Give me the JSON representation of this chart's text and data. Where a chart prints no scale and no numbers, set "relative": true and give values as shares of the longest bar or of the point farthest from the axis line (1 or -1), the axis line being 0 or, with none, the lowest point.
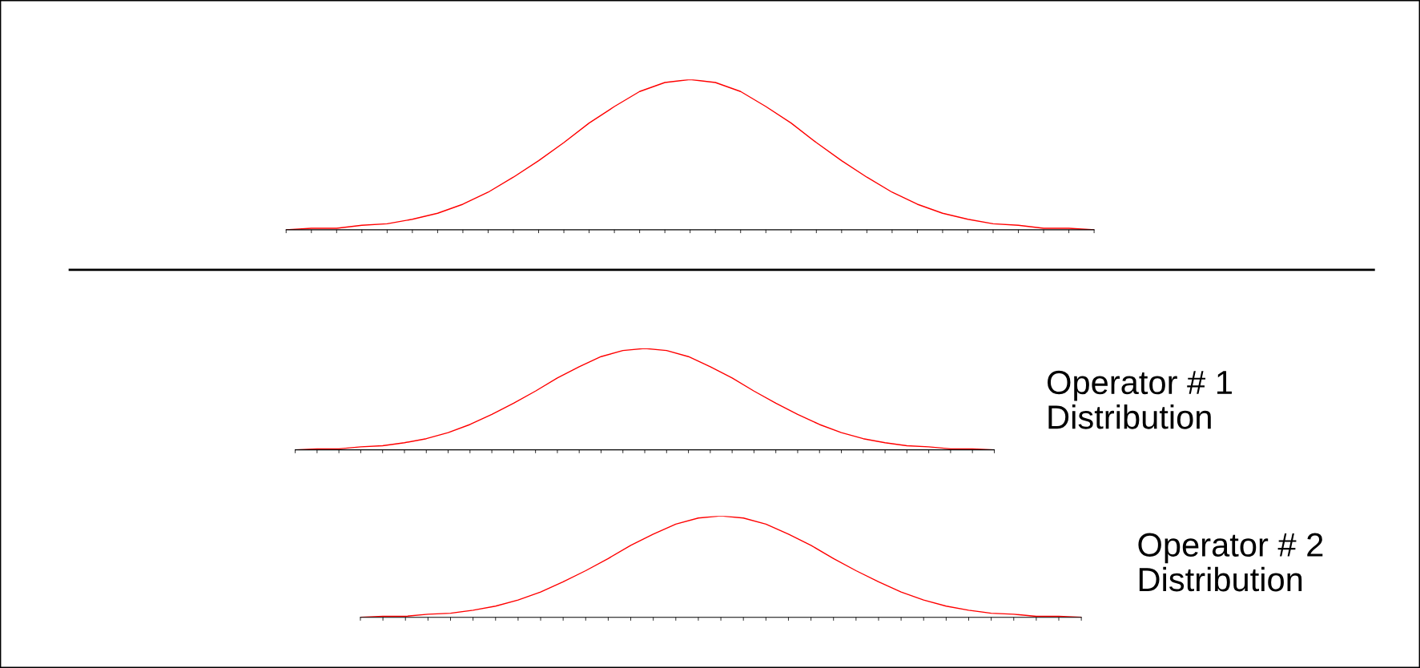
{
  "chart_data": [
    {
      "type": "line",
      "relative": true,
      "tick_labels": false,
      "grid": false,
      "legend": false,
      "marker": "none",
      "line_style": "solid",
      "categories": [
        null,
        null,
        null,
        null,
        null,
        null,
        null,
        null,
        null,
        null,
        null,
        null,
        null,
        null,
        null,
        null,
        null,
        null,
        null,
        null,
        null,
        null,
        null,
        null,
        null,
        null,
        null,
        null,
        null,
        null,
        null,
        null,
        null
      ],
      "series": [
        {
          "color": "#ff0000",
          "values": [
            0,
            0.01,
            0.01,
            0.03,
            0.04,
            0.07,
            0.11,
            0.17,
            0.25,
            0.35,
            0.46,
            0.58,
            0.71,
            0.82,
            0.92,
            0.98,
            1,
            0.98,
            0.92,
            0.82,
            0.71,
            0.58,
            0.46,
            0.35,
            0.25,
            0.17,
            0.11,
            0.07,
            0.04,
            0.03,
            0.01,
            0.01,
            0
          ]
        }
      ]
    },
    {
      "type": "line",
      "relative": true,
      "tick_labels": false,
      "grid": false,
      "legend": false,
      "marker": "none",
      "line_style": "solid",
      "categories": [
        null,
        null,
        null,
        null,
        null,
        null,
        null,
        null,
        null,
        null,
        null,
        null,
        null,
        null,
        null,
        null,
        null,
        null,
        null,
        null,
        null,
        null,
        null,
        null,
        null,
        null,
        null,
        null,
        null,
        null,
        null,
        null,
        null
      ],
      "series": [
        {
          "color": "#ff0000",
          "values": [
            0,
            0.01,
            0.01,
            0.03,
            0.04,
            0.07,
            0.11,
            0.17,
            0.25,
            0.35,
            0.46,
            0.58,
            0.71,
            0.82,
            0.92,
            0.98,
            1,
            0.98,
            0.92,
            0.82,
            0.71,
            0.58,
            0.46,
            0.35,
            0.25,
            0.17,
            0.11,
            0.07,
            0.04,
            0.03,
            0.01,
            0.01,
            0
          ]
        }
      ],
      "annotations": [
        "Operator # 1\nDistribution"
      ]
    },
    {
      "type": "line",
      "relative": true,
      "tick_labels": false,
      "grid": false,
      "legend": false,
      "marker": "none",
      "line_style": "solid",
      "categories": [
        null,
        null,
        null,
        null,
        null,
        null,
        null,
        null,
        null,
        null,
        null,
        null,
        null,
        null,
        null,
        null,
        null,
        null,
        null,
        null,
        null,
        null,
        null,
        null,
        null,
        null,
        null,
        null,
        null,
        null,
        null,
        null,
        null
      ],
      "series": [
        {
          "color": "#ff0000",
          "values": [
            0,
            0.01,
            0.01,
            0.03,
            0.04,
            0.07,
            0.11,
            0.17,
            0.25,
            0.35,
            0.46,
            0.58,
            0.71,
            0.82,
            0.92,
            0.98,
            1,
            0.98,
            0.92,
            0.82,
            0.71,
            0.58,
            0.46,
            0.35,
            0.25,
            0.17,
            0.11,
            0.07,
            0.04,
            0.03,
            0.01,
            0.01,
            0
          ]
        }
      ],
      "annotations": [
        "Operator # 2\nDistribution"
      ]
    }
  ]
}
